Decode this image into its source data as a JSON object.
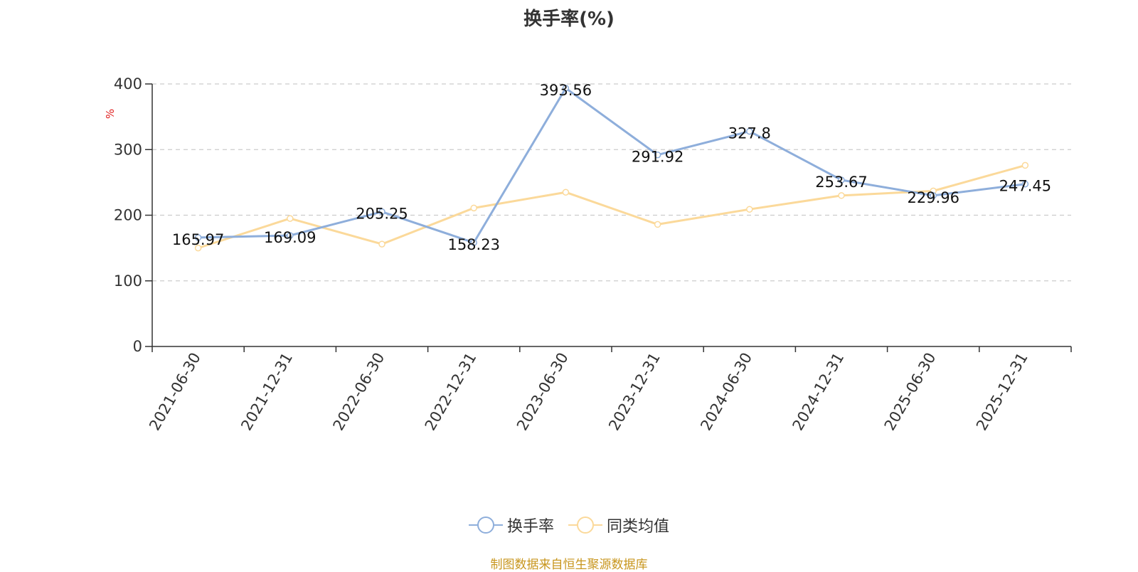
{
  "chart_data": {
    "type": "line",
    "title": "换手率(%)",
    "ylabel": "%",
    "ylim": [
      0,
      400
    ],
    "yticks": [
      0,
      100,
      200,
      300,
      400
    ],
    "grid": true,
    "legend_position": "bottom",
    "categories": [
      "2021-06-30",
      "2021-12-31",
      "2022-06-30",
      "2022-12-31",
      "2023-06-30",
      "2023-12-31",
      "2024-06-30",
      "2024-12-31",
      "2025-06-30",
      "2025-12-31"
    ],
    "series": [
      {
        "name": "换手率",
        "color": "#8eaedb",
        "values": [
          165.97,
          169.09,
          205.25,
          158.23,
          393.56,
          291.92,
          327.8,
          253.67,
          229.96,
          247.45
        ],
        "labels": [
          "165.97",
          "169.09",
          "205.25",
          "158.23",
          "393.56",
          "291.92",
          "327.8",
          "253.67",
          "229.96",
          "247.45"
        ]
      },
      {
        "name": "同类均值",
        "color": "#fbd99a",
        "values": [
          150,
          195,
          156,
          211,
          235,
          186,
          209,
          230,
          237,
          276
        ]
      }
    ]
  },
  "source_text": "制图数据来自恒生聚源数据库"
}
